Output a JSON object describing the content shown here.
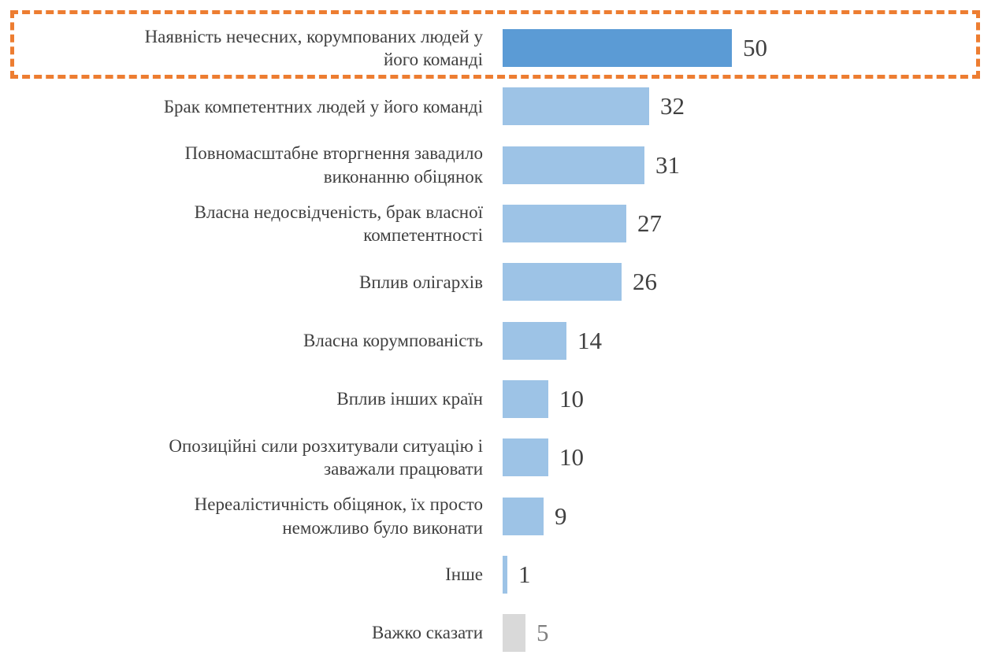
{
  "chart_data": {
    "type": "bar",
    "orientation": "horizontal",
    "title": "",
    "xlabel": "",
    "ylabel": "",
    "xlim": [
      0,
      55
    ],
    "grid": false,
    "legend": false,
    "categories": [
      "Наявність нечесних, корумпованих людей у\nйого команді",
      "Брак компетентних людей у його команді",
      "Повномасштабне вторгнення завадило\nвиконанню обіцянок",
      "Власна недосвідченість, брак власної\nкомпетентності",
      "Вплив олігархів",
      "Власна корумпованість",
      "Вплив інших країн",
      "Опозиційні сили розхитували ситуацію і\nзаважали працювати",
      "Нереалістичність обіцянок, їх просто\nнеможливо було виконати",
      "Інше",
      "Важко сказати"
    ],
    "values": [
      50,
      32,
      31,
      27,
      26,
      14,
      10,
      10,
      9,
      1,
      5
    ],
    "bar_styles": [
      "highlight",
      "normal",
      "normal",
      "normal",
      "normal",
      "normal",
      "normal",
      "normal",
      "normal",
      "normal",
      "muted"
    ],
    "highlight_index": 0,
    "colors": {
      "highlight_bar": "#5b9bd5",
      "normal_bar": "#9dc3e6",
      "muted_bar": "#d9d9d9",
      "label_text": "#404040",
      "value_text": "#404040",
      "muted_value_text": "#7f7f7f",
      "highlight_border": "#ed7d31"
    },
    "annotations": [
      {
        "name": "highlight-box",
        "style": "orange-dashed-rectangle",
        "around_category_index": 0
      }
    ]
  }
}
